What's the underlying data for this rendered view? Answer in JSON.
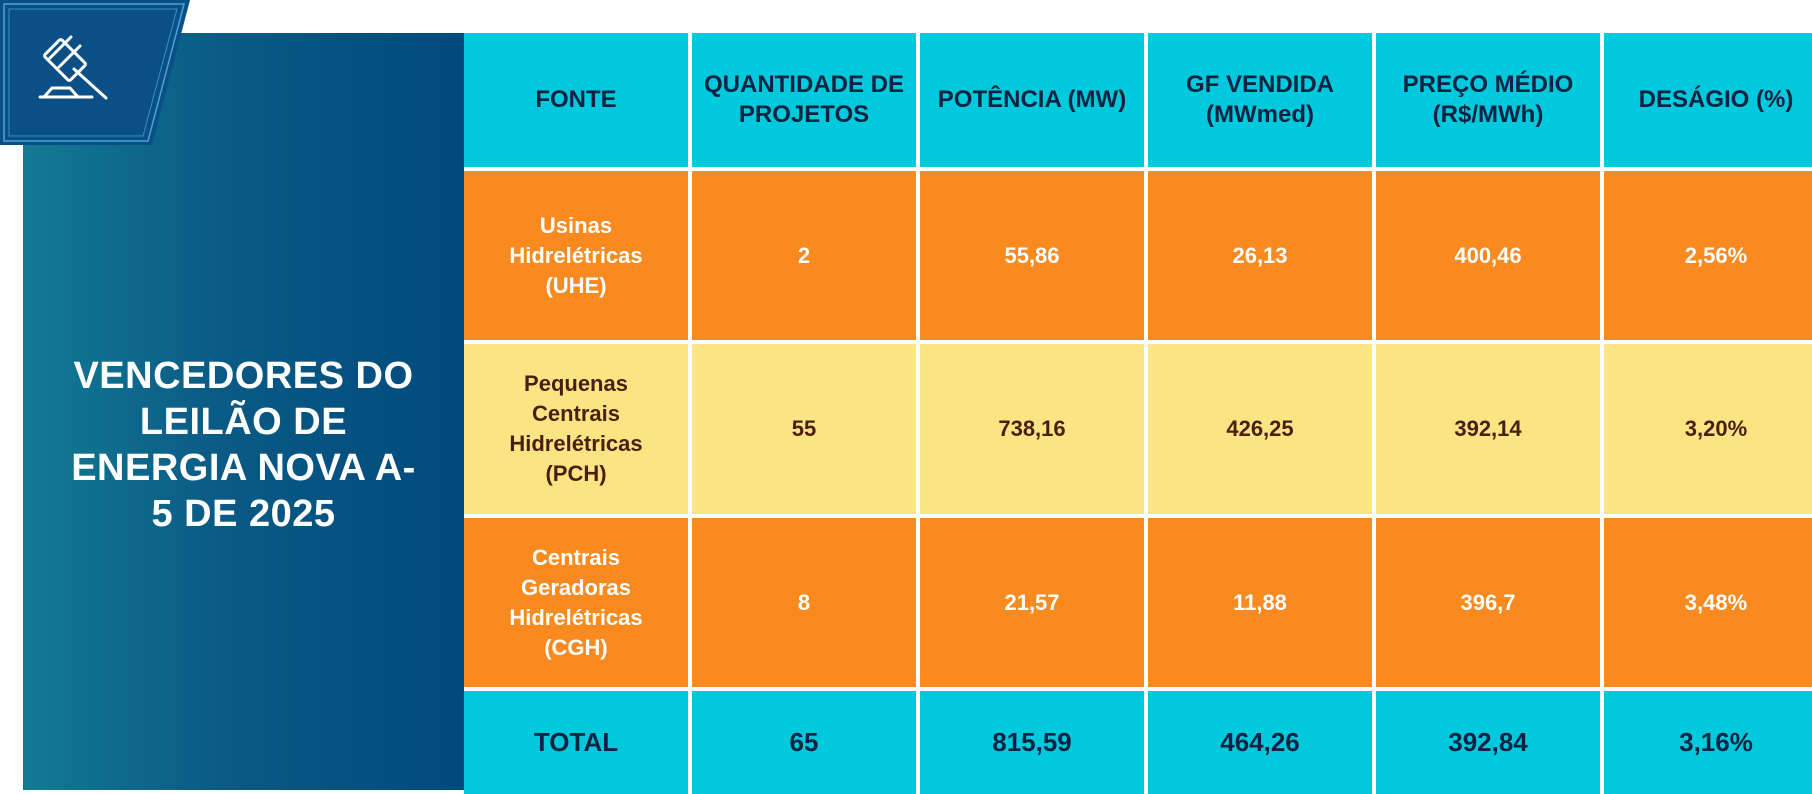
{
  "title": "VENCEDORES DO LEILÃO DE ENERGIA NOVA A-5 DE 2025",
  "badge_icon": "gavel-icon",
  "colors": {
    "header": "#00c8dd",
    "orange_row": "#f98a1f",
    "yellow_row": "#fbe482",
    "panel_dark": "#004a7c"
  },
  "table": {
    "headers": [
      "FONTE",
      "QUANTIDADE DE PROJETOS",
      "POTÊNCIA (MW)",
      "GF VENDIDA (MWmed)",
      "PREÇO MÉDIO (R$/MWh)",
      "DESÁGIO (%)"
    ],
    "rows": [
      [
        "Usinas Hidrelétricas (UHE)",
        "2",
        "55,86",
        "26,13",
        "400,46",
        "2,56%"
      ],
      [
        "Pequenas Centrais Hidrelétricas (PCH)",
        "55",
        "738,16",
        "426,25",
        "392,14",
        "3,20%"
      ],
      [
        "Centrais Geradoras Hidrelétricas (CGH)",
        "8",
        "21,57",
        "11,88",
        "396,7",
        "3,48%"
      ]
    ],
    "total": [
      "TOTAL",
      "65",
      "815,59",
      "464,26",
      "392,84",
      "3,16%"
    ]
  }
}
